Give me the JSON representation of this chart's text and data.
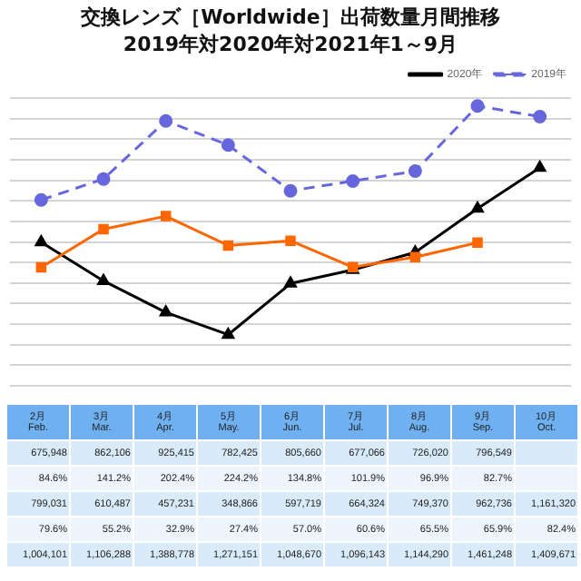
{
  "chart_data": {
    "type": "line",
    "title": "交換レンズ［Worldwide］出荷数量月間推移",
    "subtitle": "2019年対2020年対2021年1～9月",
    "categories": [
      "2月\nFeb.",
      "3月\nMar.",
      "4月\nApr.",
      "5月\nMay.",
      "6月\nJun.",
      "7月\nJul.",
      "8月\nAug.",
      "9月\nSep.",
      "10月\nOct."
    ],
    "series": [
      {
        "color": "#ff6600",
        "marker": "square",
        "line_style": "solid",
        "values": [
          675948,
          862106,
          925415,
          782425,
          805660,
          677066,
          726020,
          796549,
          null
        ],
        "value_labels": [
          "675,948",
          "862,106",
          "925,415",
          "782,425",
          "805,660",
          "677,066",
          "726,020",
          "796,549",
          null
        ]
      },
      {
        "name": "2020年",
        "color": "#000000",
        "marker": "triangle",
        "line_style": "solid",
        "values": [
          799031,
          610487,
          457231,
          348866,
          597719,
          664324,
          749370,
          962736,
          1161320
        ],
        "value_labels": [
          "799,031",
          "610,487",
          "457,231",
          "348,866",
          "597,719",
          "664,324",
          "749,370",
          "962,736",
          "1,161,320"
        ]
      },
      {
        "name": "2019年",
        "color": "#6666dd",
        "marker": "circle",
        "line_style": "dashed",
        "values": [
          1004101,
          1106288,
          1388778,
          1271151,
          1048670,
          1096143,
          1144290,
          1461248,
          1409671
        ],
        "value_labels": [
          "1,004,101",
          "1,106,288",
          "1,388,778",
          "1,271,151",
          "1,048,670",
          "1,096,143",
          "1,144,290",
          "1,461,248",
          "1,409,671"
        ]
      }
    ],
    "annotations": [
      "84.6%",
      "141.2%",
      "202.4%",
      "224.2%",
      "134.8%",
      "101.9%",
      "96.9%",
      "82.7%",
      "79.6%",
      "55.2%",
      "32.9%",
      "27.4%",
      "57.0%",
      "60.6%",
      "65.5%",
      "65.9%",
      "82.4%"
    ],
    "ylim": [
      100000,
      1500000
    ],
    "yticks": [
      {
        "value": 100000,
        "label": null
      },
      {
        "value": 200000,
        "label": null
      },
      {
        "value": 300000,
        "label": null
      },
      {
        "value": 400000,
        "label": null
      },
      {
        "value": 500000,
        "label": null
      },
      {
        "value": 600000,
        "label": null
      },
      {
        "value": 700000,
        "label": null
      },
      {
        "value": 800000,
        "label": null
      },
      {
        "value": 900000,
        "label": null
      },
      {
        "value": 1000000,
        "label": null
      },
      {
        "value": 1100000,
        "label": null
      },
      {
        "value": 1200000,
        "label": null
      },
      {
        "value": 1300000,
        "label": null
      },
      {
        "value": 1400000,
        "label": null
      },
      {
        "value": 1500000,
        "label": null
      }
    ],
    "grid": "y",
    "legend": "top right",
    "tick_labels": "x"
  }
}
